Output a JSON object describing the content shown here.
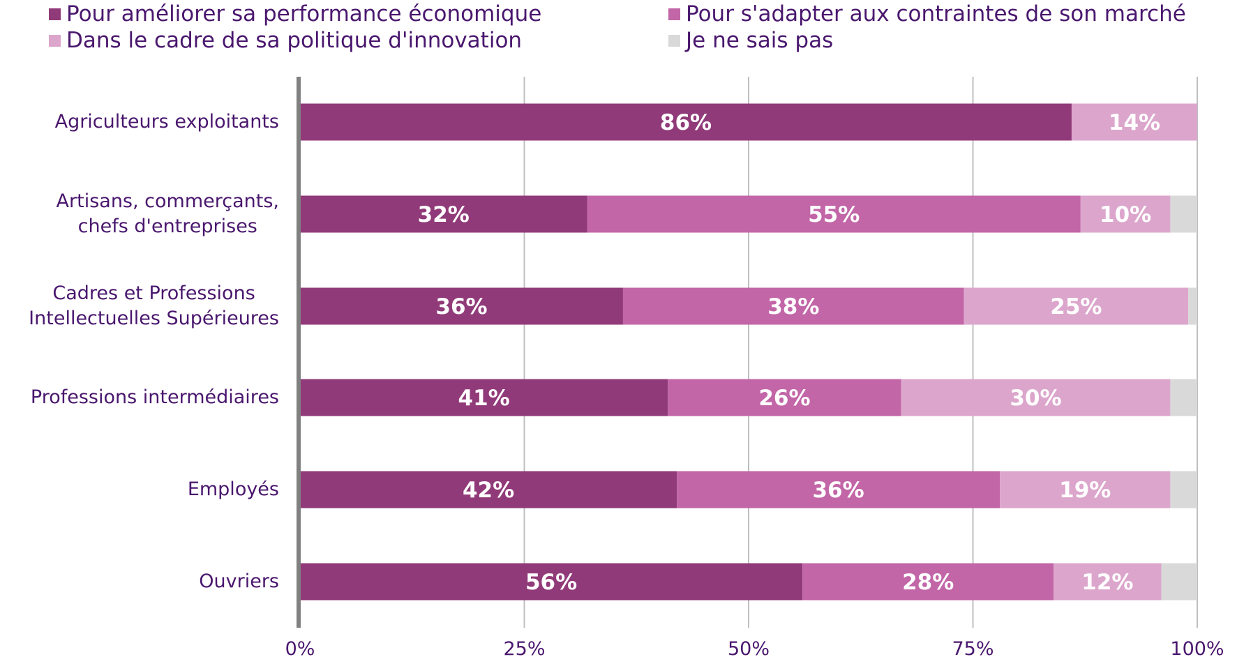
{
  "chart_data": {
    "type": "bar",
    "orientation": "horizontal",
    "stacked": true,
    "categories": [
      [
        "Agriculteurs exploitants"
      ],
      [
        "Artisans, commerçants,",
        "chefs d'entreprises"
      ],
      [
        "Cadres et Professions",
        "Intellectuelles Supérieures"
      ],
      [
        "Professions intermédiaires"
      ],
      [
        "Employés"
      ],
      [
        "Ouvriers"
      ]
    ],
    "series": [
      {
        "name": "Pour améliorer sa performance économique",
        "color": "#913a79",
        "values": [
          86,
          32,
          36,
          41,
          42,
          56
        ],
        "labels": [
          "86%",
          "32%",
          "36%",
          "41%",
          "42%",
          "56%"
        ]
      },
      {
        "name": "Pour s'adapter aux contraintes de son marché",
        "color": "#c266a7",
        "values": [
          0,
          55,
          38,
          26,
          36,
          28
        ],
        "labels": [
          "",
          "55%",
          "38%",
          "26%",
          "36%",
          "28%"
        ]
      },
      {
        "name": "Dans le cadre de sa politique d'innovation",
        "color": "#dca6cc",
        "values": [
          14,
          10,
          25,
          30,
          19,
          12
        ],
        "labels": [
          "14%",
          "10%",
          "25%",
          "30%",
          "19%",
          "12%"
        ]
      },
      {
        "name": "Je ne sais pas",
        "color": "#d9d9d9",
        "values": [
          0,
          3,
          1,
          3,
          3,
          4
        ],
        "labels": [
          "",
          "",
          "",
          "",
          "",
          ""
        ]
      }
    ],
    "xlim": [
      0,
      100
    ],
    "xticks": [
      "0%",
      "25%",
      "50%",
      "75%",
      "100%"
    ],
    "legend_position": "top",
    "grid": true
  },
  "colors": {
    "text": "#4a176e",
    "grid": "#bfbfbf",
    "axis": "#808080"
  }
}
